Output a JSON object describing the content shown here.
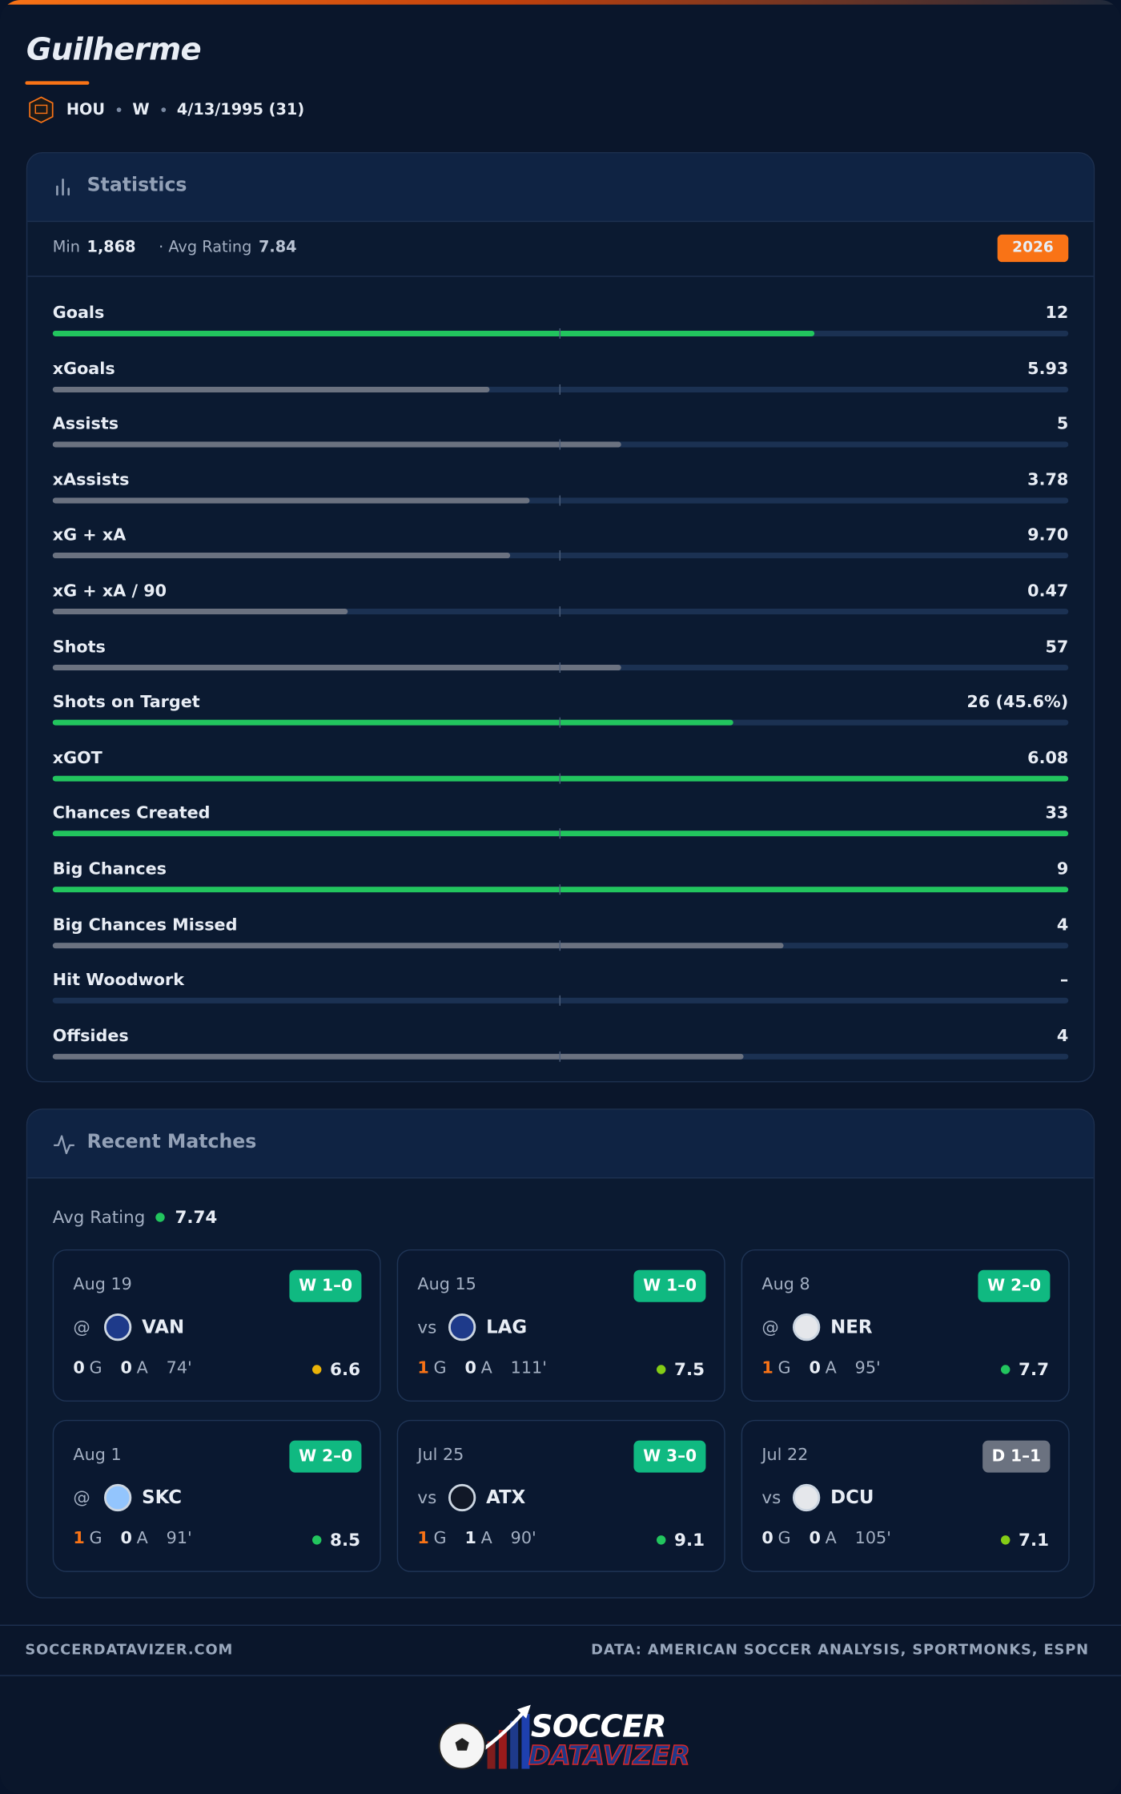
{
  "header": {
    "name": "Guilherme",
    "team": "HOU",
    "position": "W",
    "birth": "4/13/1995 (31)"
  },
  "statistics": {
    "title": "Statistics",
    "min_label": "Min",
    "minutes": "1,868",
    "rating_label": "· Avg Rating",
    "avg_rating": 7.84,
    "season": 2026,
    "rows": [
      {
        "label": "Goals",
        "value": 12,
        "bar": 75,
        "color": "#22c55e"
      },
      {
        "label": "xGoals",
        "value": 5.93,
        "bar": 43,
        "color": "#6b7280"
      },
      {
        "label": "Assists",
        "value": 5,
        "bar": 56,
        "color": "#6b7280"
      },
      {
        "label": "xAssists",
        "value": 3.78,
        "bar": 47,
        "color": "#6b7280"
      },
      {
        "label": "xG + xA",
        "value": "9.70",
        "bar": 45,
        "color": "#6b7280"
      },
      {
        "label": "xG + xA / 90",
        "value": 0.47,
        "bar": 29,
        "color": "#6b7280"
      },
      {
        "label": "Shots",
        "value": 57,
        "bar": 56,
        "color": "#6b7280"
      },
      {
        "label": "Shots on Target",
        "value": "26 (45.6%)",
        "bar": 67,
        "color": "#22c55e"
      },
      {
        "label": "xGOT",
        "value": 6.08,
        "bar": 100,
        "color": "#22c55e"
      },
      {
        "label": "Chances Created",
        "value": 33,
        "bar": 100,
        "color": "#22c55e"
      },
      {
        "label": "Big Chances",
        "value": 9,
        "bar": 100,
        "color": "#22c55e"
      },
      {
        "label": "Big Chances Missed",
        "value": 4,
        "bar": 72,
        "color": "#6b7280"
      },
      {
        "label": "Hit Woodwork",
        "value": "–",
        "bar": 0,
        "color": "#6b7280"
      },
      {
        "label": "Offsides",
        "value": 4,
        "bar": 68,
        "color": "#6b7280"
      }
    ]
  },
  "recent": {
    "title": "Recent Matches",
    "avg_label": "Avg Rating",
    "avg_rating": 7.74,
    "goal_label": "G",
    "assist_label": "A",
    "matches": [
      {
        "date": "Aug 19",
        "result": "W 1–0",
        "result_color": "#10b981",
        "venue": "@",
        "team": "VAN",
        "goals": 0,
        "assists": 0,
        "minutes": "74'",
        "rating": 6.6,
        "rating_color": "#eab308"
      },
      {
        "date": "Aug 15",
        "result": "W 1–0",
        "result_color": "#10b981",
        "venue": "vs",
        "team": "LAG",
        "goals": 1,
        "assists": 0,
        "minutes": "111'",
        "rating": 7.5,
        "rating_color": "#84cc16"
      },
      {
        "date": "Aug 8",
        "result": "W 2–0",
        "result_color": "#10b981",
        "venue": "@",
        "team": "NER",
        "goals": 1,
        "assists": 0,
        "minutes": "95'",
        "rating": 7.7,
        "rating_color": "#22c55e"
      },
      {
        "date": "Aug 1",
        "result": "W 2–0",
        "result_color": "#10b981",
        "venue": "@",
        "team": "SKC",
        "goals": 1,
        "assists": 0,
        "minutes": "91'",
        "rating": 8.5,
        "rating_color": "#22c55e"
      },
      {
        "date": "Jul 25",
        "result": "W 3–0",
        "result_color": "#10b981",
        "venue": "vs",
        "team": "ATX",
        "goals": 1,
        "assists": 1,
        "minutes": "90'",
        "rating": 9.1,
        "rating_color": "#22c55e"
      },
      {
        "date": "Jul 22",
        "result": "D 1–1",
        "result_color": "#6b7280",
        "venue": "vs",
        "team": "DCU",
        "goals": 0,
        "assists": 0,
        "minutes": "105'",
        "rating": 7.1,
        "rating_color": "#84cc16"
      }
    ]
  },
  "footer": {
    "site": "SOCCERDATAVIZER.COM",
    "source": "DATA: AMERICAN SOCCER ANALYSIS, SPORTMONKS, ESPN",
    "logo_top": "SOCCER",
    "logo_bottom": "DATAVIZER"
  }
}
